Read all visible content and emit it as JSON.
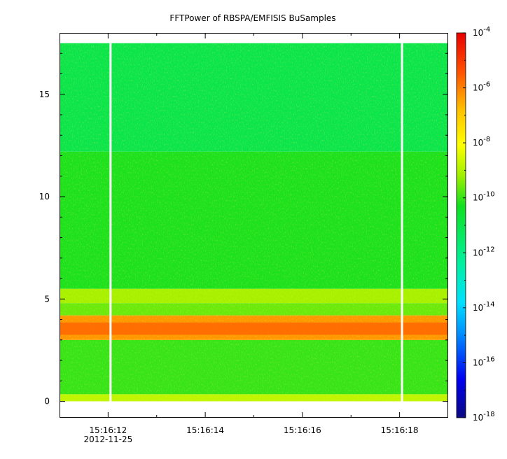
{
  "chart_data": {
    "type": "heatmap",
    "title": "FFTPower of RBSPA/EMFISIS  BuSamples",
    "xlabel": "",
    "ylabel": "",
    "x_ticks": [
      "15:16:12",
      "15:16:14",
      "15:16:16",
      "15:16:18"
    ],
    "x_date_label": "2012-11-25",
    "x_range_seconds": [
      "15:16:11.0",
      "15:16:19.0"
    ],
    "y_ticks": [
      "0",
      "5",
      "10",
      "15"
    ],
    "y_range": [
      -0.8,
      18.0
    ],
    "data_y_range": [
      0,
      17.5
    ],
    "gaps_at": [
      "15:16:12.05",
      "15:16:18.05"
    ],
    "colorbar": {
      "scale": "log",
      "range": [
        1e-18,
        0.0001
      ],
      "ticks": [
        {
          "base": "10",
          "exp": "-4",
          "value": -4
        },
        {
          "base": "10",
          "exp": "-6",
          "value": -6
        },
        {
          "base": "10",
          "exp": "-8",
          "value": -8
        },
        {
          "base": "10",
          "exp": "-10",
          "value": -10
        },
        {
          "base": "10",
          "exp": "-12",
          "value": -12
        },
        {
          "base": "10",
          "exp": "-14",
          "value": -14
        },
        {
          "base": "10",
          "exp": "-16",
          "value": -16
        },
        {
          "base": "10",
          "exp": "-18",
          "value": -18
        }
      ]
    },
    "bands": [
      {
        "y_from": 0.0,
        "y_to": 0.35,
        "log10_power": -8.8
      },
      {
        "y_from": 0.35,
        "y_to": 3.0,
        "log10_power": -10.0
      },
      {
        "y_from": 3.0,
        "y_to": 4.2,
        "log10_power": -6.3
      },
      {
        "y_from": 4.2,
        "y_to": 4.8,
        "log10_power": -9.6
      },
      {
        "y_from": 4.8,
        "y_to": 5.5,
        "log10_power": -9.1
      },
      {
        "y_from": 5.5,
        "y_to": 12.2,
        "log10_power": -10.2
      },
      {
        "y_from": 12.2,
        "y_to": 17.5,
        "log10_power": -11.0
      }
    ],
    "grid": false,
    "legend": "colorbar-right"
  }
}
